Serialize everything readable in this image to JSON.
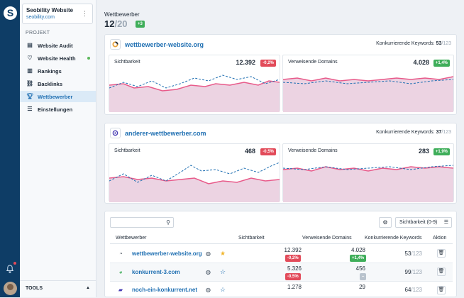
{
  "sidebar": {
    "project_name": "Seobility Website",
    "project_domain": "seobility.com",
    "section": "PROJEKT",
    "items": [
      {
        "label": "Website Audit",
        "icon": "audit-icon"
      },
      {
        "label": "Website Health",
        "icon": "health-icon"
      },
      {
        "label": "Rankings",
        "icon": "rankings-icon"
      },
      {
        "label": "Backlinks",
        "icon": "backlinks-icon"
      },
      {
        "label": "Wettbewerber",
        "icon": "trophy-icon",
        "active": true
      },
      {
        "label": "Einstellungen",
        "icon": "settings-icon"
      }
    ],
    "tools": "TOOLS"
  },
  "header": {
    "title": "Wettbewerber",
    "count": "12",
    "total": "/20",
    "badge": "+3"
  },
  "competitors": [
    {
      "domain": "wettbewerber-website.org",
      "kw_label": "Konkurrierende Keywords:",
      "kw": "53",
      "kw_total": "/123",
      "sicht_label": "Sichtbarkeit",
      "sicht_value": "12.392",
      "sicht_change": "-0,2%",
      "dom_label": "Verweisende Domains",
      "dom_value": "4.028",
      "dom_change": "+1,4%"
    },
    {
      "domain": "anderer-wettbewerber.com",
      "kw_label": "Konkurrierende Keywords:",
      "kw": "37",
      "kw_total": "/123",
      "sicht_label": "Sichtbarkeit",
      "sicht_value": "468",
      "sicht_change": "-0,5%",
      "dom_label": "Verweisende Domains",
      "dom_value": "283",
      "dom_change": "+1,9%"
    }
  ],
  "table": {
    "sort_label": "Sichtbarkeit (0-9)",
    "headers": [
      "Wettbewerber",
      "Sichtbarkeit",
      "Verweisende Domains",
      "Konkurrierende Keywords",
      "Aktion"
    ],
    "rows": [
      {
        "name": "wettbewerber-website.org",
        "sicht": "12.392",
        "sicht_change": "-0,2%",
        "dom": "4.028",
        "dom_change": "+1,4%",
        "kw": "53",
        "kw_total": "/123",
        "starred": true
      },
      {
        "name": "konkurrent-3.com",
        "sicht": "5.326",
        "sicht_change": "-0,5%",
        "dom": "456",
        "dom_change": "–",
        "kw": "99",
        "kw_total": "/123",
        "starred": false
      },
      {
        "name": "noch-ein-konkurrent.net",
        "sicht": "1.278",
        "sicht_change": "",
        "dom": "29",
        "dom_change": "",
        "kw": "64",
        "kw_total": "/123",
        "starred": false
      }
    ]
  },
  "colors": {
    "accent": "#1f6fb2",
    "sidebar_bg": "#0e3d66",
    "positive": "#3fae5a",
    "negative": "#e24b5a",
    "chart_line": "#e85a8a",
    "chart_fill": "#ecd3e2"
  }
}
